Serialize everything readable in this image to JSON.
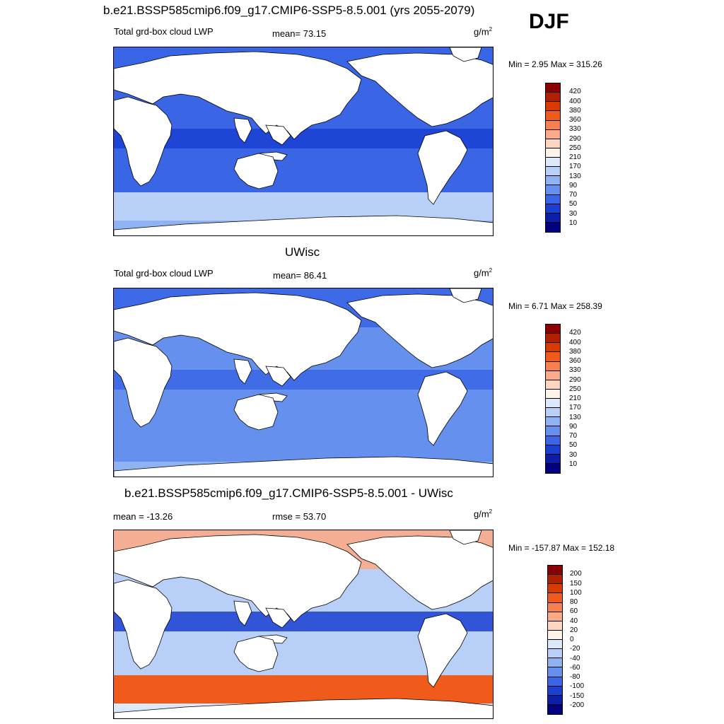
{
  "figure": {
    "season": "DJF"
  },
  "panels": [
    {
      "id": "model",
      "title": "b.e21.BSSP585cmip6.f09_g17.CMIP6-SSP5-8.5.001 (yrs 2055-2079)",
      "left_label": "Total grd-box cloud LWP",
      "center_label": "mean=  73.15",
      "units": "g/m",
      "units_exp": "2",
      "minmax": "Min =   2.95 Max = 315.26",
      "colorbar": "lwp"
    },
    {
      "id": "obs",
      "title": "UWisc",
      "left_label": "Total grd-box cloud LWP",
      "center_label": "mean=  86.41",
      "units": "g/m",
      "units_exp": "2",
      "minmax": "Min =   6.71 Max = 258.39",
      "colorbar": "lwp"
    },
    {
      "id": "diff",
      "title": "b.e21.BSSP585cmip6.f09_g17.CMIP6-SSP5-8.5.001 - UWisc",
      "left_label": "mean = -13.26",
      "center_label": "rmse =  53.70",
      "units": "g/m",
      "units_exp": "2",
      "minmax": "Min = -157.87 Max = 152.18",
      "colorbar": "diff"
    }
  ],
  "colorbars": {
    "lwp": {
      "levels": [
        "420",
        "400",
        "380",
        "360",
        "330",
        "290",
        "250",
        "210",
        "170",
        "130",
        "90",
        "70",
        "50",
        "30",
        "10"
      ],
      "colors": [
        "#8b0000",
        "#b22000",
        "#d93a00",
        "#f05a1a",
        "#f78050",
        "#fbaa88",
        "#fdd6c0",
        "#fff2e8",
        "#dce9fb",
        "#b8d0f7",
        "#8fb2f2",
        "#6690ee",
        "#3a66e6",
        "#1a40d2",
        "#0a1ea8",
        "#000080"
      ]
    },
    "diff": {
      "levels": [
        "200",
        "150",
        "100",
        "80",
        "60",
        "40",
        "20",
        "0",
        "-20",
        "-40",
        "-60",
        "-80",
        "-100",
        "-150",
        "-200"
      ],
      "colors": [
        "#8b0000",
        "#b22000",
        "#d93a00",
        "#f05a1a",
        "#f78050",
        "#fbaa88",
        "#fdd6c0",
        "#fff2e8",
        "#dce9fb",
        "#b8d0f7",
        "#8fb2f2",
        "#6690ee",
        "#3a66e6",
        "#1a40d2",
        "#0a1ea8",
        "#000080"
      ]
    }
  },
  "map_fields": {
    "model": {
      "base": "#3a66e6",
      "tropics": "#1a40d2",
      "south": "#b8d0f7",
      "north": "#3a66e6",
      "coast": "#8fb2f2"
    },
    "obs": {
      "base": "#6690ee",
      "tropics": "#3a66e6",
      "south": "#6690ee",
      "north": "#3a66e6",
      "coast": "#8fb2f2"
    },
    "diff": {
      "base": "#b8d0f7",
      "tropics": "#1a40d2",
      "south": "#f05a1a",
      "north": "#fbaa88",
      "coast": "#dce9fb"
    }
  }
}
